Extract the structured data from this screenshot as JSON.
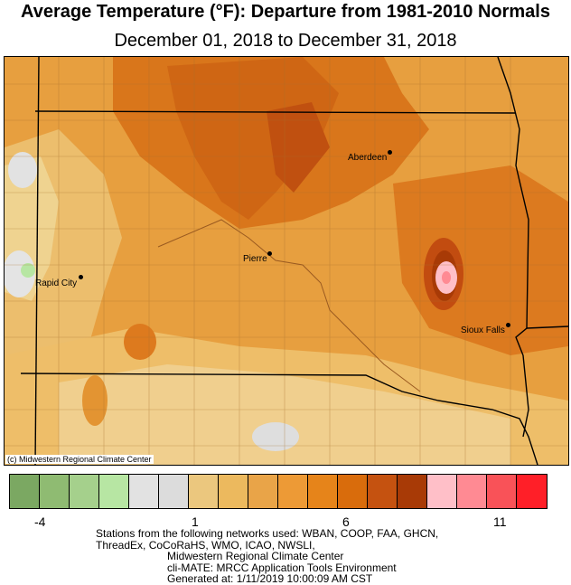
{
  "title": "Average Temperature (°F): Departure from 1981-2010 Normals",
  "subtitle": "December 01, 2018 to December 31, 2018",
  "map": {
    "credit": "(c) Midwestern Regional Climate Center",
    "cities": [
      {
        "name": "Aberdeen"
      },
      {
        "name": "Pierre"
      },
      {
        "name": "Rapid City"
      },
      {
        "name": "Sioux Falls"
      }
    ]
  },
  "legend": {
    "colors": [
      "#7ba862",
      "#8fbb72",
      "#a5d08c",
      "#b7e6a3",
      "#e2e2e2",
      "#dcdcdc",
      "#ebc77e",
      "#ecb95e",
      "#e9a448",
      "#ed9a36",
      "#e6841a",
      "#d96c0c",
      "#c55210",
      "#a83a06",
      "#ffbfc8",
      "#ff8a93",
      "#f95258",
      "#ff1f28"
    ],
    "tick_labels": [
      "-4",
      "1",
      "6",
      "11"
    ]
  },
  "footer": {
    "line1": "Stations from the following networks used: WBAN, COOP, FAA, GHCN,",
    "line2": "ThreadEx, CoCoRaHS, WMO, ICAO, NWSLI,",
    "line3": "Midwestern Regional Climate Center",
    "line4": "cli-MATE: MRCC Application Tools Environment",
    "line5": "Generated at: 1/11/2019 10:00:09 AM CST"
  }
}
